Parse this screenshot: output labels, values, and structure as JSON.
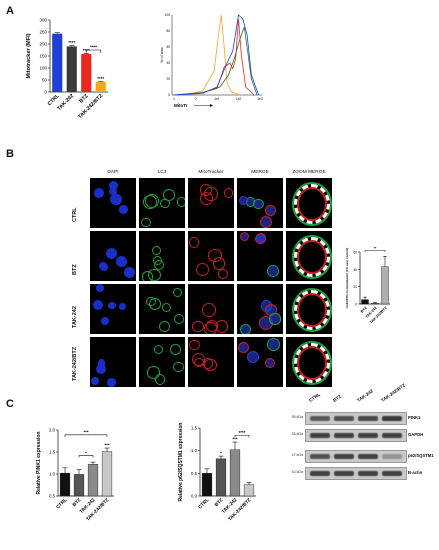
{
  "panels": {
    "a": "A",
    "b": "B",
    "c": "C"
  },
  "panel_a": {
    "chart_data": [
      {
        "type": "bar",
        "categories": [
          "CTRL",
          "TAK-242",
          "BTZ",
          "TAK-242/BTZ"
        ],
        "values": [
          243,
          190,
          158,
          42
        ],
        "errors": [
          4,
          3,
          3,
          2
        ],
        "colors": [
          "#1f3fd8",
          "#3a3a3a",
          "#e8281e",
          "#f5a623"
        ],
        "ylabel": "Mitotracker (MFI)",
        "ylim": [
          0,
          300
        ],
        "yticks": [
          "0",
          "50",
          "100",
          "150",
          "200",
          "250",
          "300"
        ],
        "significance": [
          "",
          "****",
          "****",
          "****"
        ],
        "bracket_label": "****"
      },
      {
        "type": "line",
        "xlabel": "MitoTr",
        "ylabel": "% of max",
        "yticks": [
          "0",
          "20",
          "40",
          "60",
          "80",
          "100"
        ],
        "xticks": [
          "1",
          "0",
          "1e1",
          "1e2",
          "1e3"
        ],
        "series": [
          {
            "color": "#f5a623",
            "x": [
              0,
              0.6,
              1.0,
              1.4,
              1.55,
              1.65,
              1.75,
              1.85,
              2.0,
              2.3
            ],
            "y": [
              0,
              2,
              5,
              30,
              75,
              100,
              60,
              15,
              4,
              0
            ]
          },
          {
            "color": "#e8281e",
            "x": [
              0,
              1.0,
              1.5,
              1.75,
              1.95,
              2.05,
              2.15,
              2.25,
              2.35,
              2.5,
              2.8
            ],
            "y": [
              0,
              3,
              8,
              35,
              40,
              33,
              45,
              95,
              50,
              10,
              0
            ]
          },
          {
            "color": "#2e6e2e",
            "x": [
              0,
              1.0,
              1.6,
              1.9,
              2.1,
              2.3,
              2.45,
              2.55,
              2.7,
              2.9
            ],
            "y": [
              0,
              3,
              10,
              25,
              45,
              70,
              85,
              60,
              20,
              0
            ]
          },
          {
            "color": "#1f3fd8",
            "x": [
              0,
              1.0,
              1.5,
              1.85,
              2.05,
              2.25,
              2.4,
              2.55,
              2.7,
              2.95
            ],
            "y": [
              0,
              2,
              10,
              40,
              55,
              100,
              95,
              75,
              25,
              0
            ]
          }
        ]
      }
    ]
  },
  "panel_b": {
    "columns": [
      "DAPI",
      "LC3",
      "MitoTracker",
      "MERGE",
      "ZOOM MERGE"
    ],
    "rows": [
      "CTRL",
      "BTZ",
      "TAK-242",
      "TAK-242/BTZ"
    ],
    "chart_data": {
      "type": "bar",
      "categories": [
        "BTZ",
        "TAK-242",
        "TAK-242/BTZ"
      ],
      "values": [
        5,
        1,
        43
      ],
      "errors": [
        3,
        1,
        12
      ],
      "ylabel": "LC3/MITO co-localization (FC over control)",
      "ylim": [
        0,
        60
      ],
      "yticks": [
        "0",
        "20",
        "40",
        "60"
      ],
      "bracket_label": "**",
      "colors": [
        "#111111",
        "#777777",
        "#b0b0b0"
      ]
    }
  },
  "panel_c": {
    "chart_data": [
      {
        "type": "bar",
        "categories": [
          "CTRL",
          "BTZ",
          "TAK-242",
          "TAK-242/BTZ"
        ],
        "values": [
          1.02,
          0.99,
          1.22,
          1.51
        ],
        "errors": [
          0.12,
          0.11,
          0.05,
          0.08
        ],
        "colors": [
          "#111111",
          "#555555",
          "#8a8a8a",
          "#c8c8c8"
        ],
        "ylabel": "Relative PINK1 expression",
        "ylim": [
          0.5,
          2.0
        ],
        "yticks": [
          "0.5",
          "1.0",
          "1.5",
          "2.0"
        ],
        "significance": [
          "",
          "",
          "",
          "***"
        ],
        "brackets": [
          {
            "from": 1,
            "to": 2,
            "label": "*"
          },
          {
            "from": 0,
            "to": 3,
            "label": "***"
          }
        ]
      },
      {
        "type": "bar",
        "categories": [
          "CTRL",
          "BTZ",
          "TAK-242",
          "TAK-242/BTZ"
        ],
        "values": [
          0.5,
          0.82,
          1.02,
          0.25
        ],
        "errors": [
          0.1,
          0.06,
          0.17,
          0.05
        ],
        "colors": [
          "#111111",
          "#555555",
          "#8a8a8a",
          "#c8c8c8"
        ],
        "ylabel": "Relative p62/SQSTM1 expression",
        "ylim": [
          0.0,
          1.5
        ],
        "yticks": [
          "0.0",
          "0.5",
          "1.0",
          "1.5"
        ],
        "significance": [
          "",
          "*",
          "***",
          ""
        ],
        "brackets": [
          {
            "from": 2,
            "to": 3,
            "label": "****"
          }
        ]
      }
    ],
    "western_blot": {
      "lanes": [
        "CTRL",
        "BTZ",
        "TAK-242",
        "TAK-242/BTZ"
      ],
      "blots": [
        {
          "kda": "55 kDa",
          "label": "PINK1",
          "intensity": [
            0.75,
            0.8,
            0.85,
            0.95
          ]
        },
        {
          "kda": "36 kDa",
          "label": "GAPDH",
          "intensity": [
            0.9,
            0.9,
            0.9,
            0.9
          ]
        },
        {
          "kda": "47 kDa",
          "label": "p62/SQSTM1",
          "intensity": [
            0.8,
            0.9,
            0.9,
            0.35
          ]
        },
        {
          "kda": "42 kDa",
          "label": "B-actin",
          "intensity": [
            0.9,
            0.9,
            0.9,
            0.9
          ]
        }
      ]
    }
  }
}
